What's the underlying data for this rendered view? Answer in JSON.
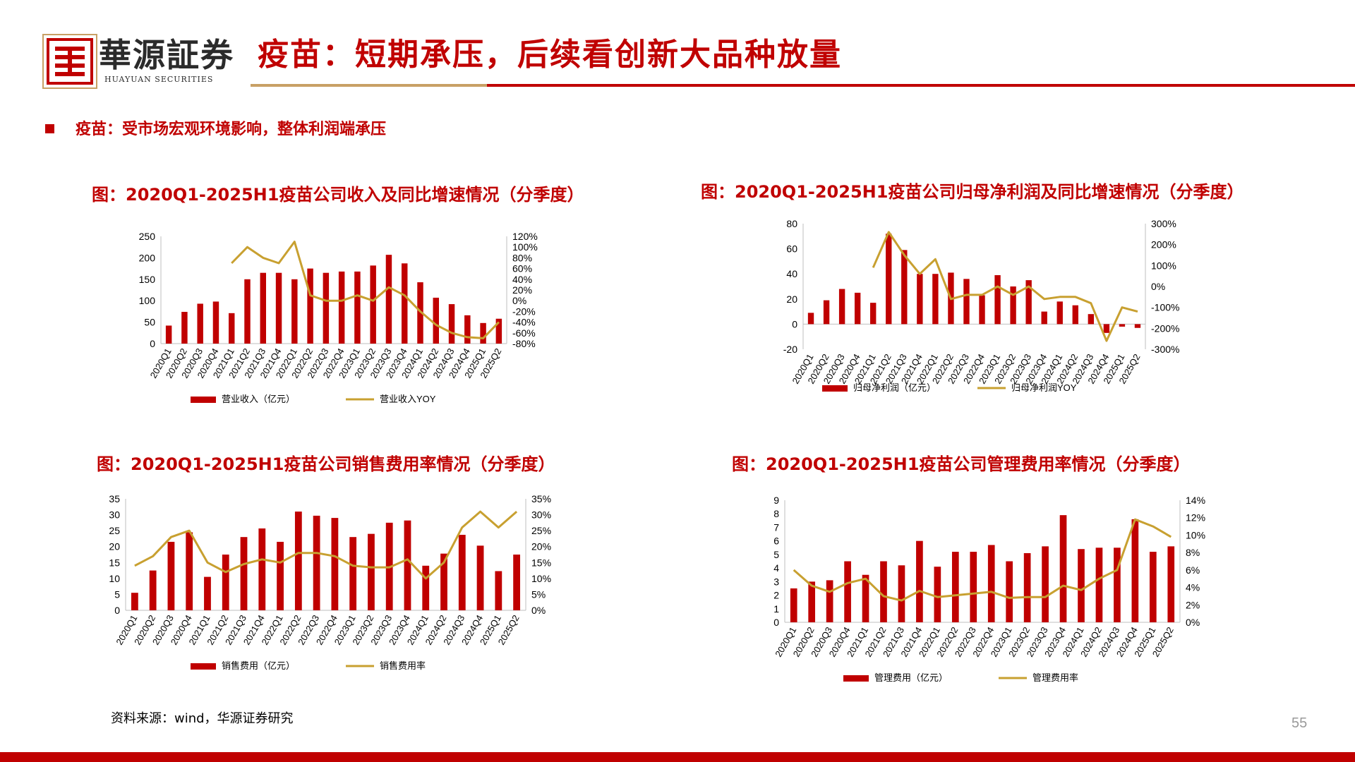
{
  "header": {
    "brand_cn": "華源証券",
    "brand_en": "HUAYUAN SECURITIES",
    "title": "疫苗：短期承压，后续看创新大品种放量",
    "accent_color": "#c00000",
    "gold_color": "#c8a065"
  },
  "subheading": "疫苗：受市场宏观环境影响，整体利润端承压",
  "chart_titles": {
    "revenue": "图：2020Q1-2025H1疫苗公司收入及同比增速情况（分季度）",
    "profit": "图：2020Q1-2025H1疫苗公司归母净利润及同比增速情况（分季度）",
    "selling": "图：2020Q1-2025H1疫苗公司销售费用率情况（分季度）",
    "admin": "图：2020Q1-2025H1疫苗公司管理费用率情况（分季度）"
  },
  "chart_data": [
    {
      "id": "revenue",
      "type": "bar",
      "categories": [
        "2020Q1",
        "2020Q2",
        "2020Q3",
        "2020Q4",
        "2021Q1",
        "2021Q2",
        "2021Q3",
        "2021Q4",
        "2022Q1",
        "2022Q2",
        "2022Q3",
        "2022Q4",
        "2023Q1",
        "2023Q2",
        "2023Q3",
        "2023Q4",
        "2024Q1",
        "2024Q2",
        "2024Q3",
        "2024Q4",
        "2025Q1",
        "2025Q2"
      ],
      "series": [
        {
          "name": "营业收入（亿元）",
          "type": "bar",
          "axis": "left",
          "color": "#c00000",
          "values": [
            42,
            74,
            93,
            98,
            71,
            150,
            165,
            165,
            150,
            175,
            165,
            168,
            168,
            182,
            207,
            187,
            143,
            107,
            92,
            66,
            48,
            58
          ]
        },
        {
          "name": "营业收入YOY",
          "type": "line",
          "axis": "right",
          "color": "#c8a030",
          "values": [
            null,
            null,
            null,
            null,
            70,
            100,
            80,
            70,
            110,
            10,
            0,
            0,
            10,
            0,
            25,
            10,
            -20,
            -45,
            -60,
            -68,
            -70,
            -40
          ]
        }
      ],
      "left_axis": {
        "ticks": [
          0,
          50,
          100,
          150,
          200,
          250
        ],
        "ylim": [
          0,
          250
        ]
      },
      "right_axis": {
        "ticks": [
          "-80%",
          "-60%",
          "-40%",
          "-20%",
          "0%",
          "20%",
          "40%",
          "60%",
          "80%",
          "100%",
          "120%"
        ],
        "ylim": [
          -80,
          120
        ]
      }
    },
    {
      "id": "profit",
      "type": "bar",
      "categories": [
        "2020Q1",
        "2020Q2",
        "2020Q3",
        "2020Q4",
        "2021Q1",
        "2021Q2",
        "2021Q3",
        "2021Q4",
        "2022Q1",
        "2022Q2",
        "2022Q3",
        "2022Q4",
        "2023Q1",
        "2023Q2",
        "2023Q3",
        "2023Q4",
        "2024Q1",
        "2024Q2",
        "2024Q3",
        "2024Q4",
        "2025Q1",
        "2025Q2"
      ],
      "series": [
        {
          "name": "归母净利润（亿元）",
          "type": "bar",
          "axis": "left",
          "color": "#c00000",
          "values": [
            9,
            19,
            28,
            25,
            17,
            72,
            59,
            40,
            40,
            41,
            36,
            23,
            39,
            30,
            35,
            10,
            18,
            15,
            8,
            -7,
            -2,
            -3
          ]
        },
        {
          "name": "归母净利润YOY",
          "type": "line",
          "axis": "right",
          "color": "#c8a030",
          "values": [
            null,
            null,
            null,
            null,
            90,
            260,
            150,
            60,
            130,
            -60,
            -40,
            -40,
            0,
            -40,
            0,
            -60,
            -50,
            -50,
            -80,
            -260,
            -100,
            -120
          ]
        }
      ],
      "left_axis": {
        "ticks": [
          -20,
          0,
          20,
          40,
          60,
          80
        ],
        "ylim": [
          -20,
          80
        ]
      },
      "right_axis": {
        "ticks": [
          "-300%",
          "-200%",
          "-100%",
          "0%",
          "100%",
          "200%",
          "300%"
        ],
        "ylim": [
          -300,
          300
        ]
      }
    },
    {
      "id": "selling",
      "type": "bar",
      "categories": [
        "2020Q1",
        "2020Q2",
        "2020Q3",
        "2020Q4",
        "2021Q1",
        "2021Q2",
        "2021Q3",
        "2021Q4",
        "2022Q1",
        "2022Q2",
        "2022Q3",
        "2022Q4",
        "2023Q1",
        "2023Q2",
        "2023Q3",
        "2023Q4",
        "2024Q1",
        "2024Q2",
        "2024Q3",
        "2024Q4",
        "2025Q1",
        "2025Q2"
      ],
      "series": [
        {
          "name": "销售费用（亿元）",
          "type": "bar",
          "axis": "left",
          "color": "#c00000",
          "values": [
            5.5,
            12.5,
            21.5,
            24.5,
            10.5,
            17.5,
            23,
            25.7,
            21.5,
            31,
            29.7,
            29,
            23,
            24,
            27.5,
            28.2,
            14,
            17.8,
            23.7,
            20.3,
            12.3,
            17.5
          ]
        },
        {
          "name": "销售费用率",
          "type": "line",
          "axis": "right",
          "color": "#c8a030",
          "values": [
            14,
            17,
            23,
            25,
            15,
            12,
            14.5,
            16,
            15,
            18,
            18,
            17,
            14,
            13.5,
            13.5,
            16,
            10,
            15,
            26,
            31,
            26,
            31
          ]
        }
      ],
      "left_axis": {
        "ticks": [
          0,
          5,
          10,
          15,
          20,
          25,
          30,
          35
        ],
        "ylim": [
          0,
          35
        ]
      },
      "right_axis": {
        "ticks": [
          "0%",
          "5%",
          "10%",
          "15%",
          "20%",
          "25%",
          "30%",
          "35%"
        ],
        "ylim": [
          0,
          35
        ]
      }
    },
    {
      "id": "admin",
      "type": "bar",
      "categories": [
        "2020Q1",
        "2020Q2",
        "2020Q3",
        "2020Q4",
        "2021Q1",
        "2021Q2",
        "2021Q3",
        "2021Q4",
        "2022Q1",
        "2022Q2",
        "2022Q3",
        "2022Q4",
        "2023Q1",
        "2023Q2",
        "2023Q3",
        "2023Q4",
        "2024Q1",
        "2024Q2",
        "2024Q3",
        "2024Q4",
        "2025Q1",
        "2025Q2"
      ],
      "series": [
        {
          "name": "管理费用（亿元）",
          "type": "bar",
          "axis": "left",
          "color": "#c00000",
          "values": [
            2.5,
            3,
            3.1,
            4.5,
            3.5,
            4.5,
            4.2,
            6,
            4.1,
            5.2,
            5.2,
            5.7,
            4.5,
            5.1,
            5.6,
            7.9,
            5.4,
            5.5,
            5.5,
            7.6,
            5.2,
            5.6
          ]
        },
        {
          "name": "管理费用率",
          "type": "line",
          "axis": "right",
          "color": "#c8a030",
          "values": [
            6,
            4.2,
            3.5,
            4.5,
            5,
            3,
            2.5,
            3.6,
            2.9,
            3.1,
            3.3,
            3.5,
            2.8,
            2.9,
            2.9,
            4.2,
            3.7,
            5,
            6,
            11.8,
            11,
            9.8
          ]
        }
      ],
      "left_axis": {
        "ticks": [
          0,
          1,
          2,
          3,
          4,
          5,
          6,
          7,
          8,
          9
        ],
        "ylim": [
          0,
          9
        ]
      },
      "right_axis": {
        "ticks": [
          "0%",
          "2%",
          "4%",
          "6%",
          "8%",
          "10%",
          "12%",
          "14%"
        ],
        "ylim": [
          0,
          14
        ]
      }
    }
  ],
  "footer": {
    "source": "资料来源：wind，华源证券研究",
    "page_number": "55"
  }
}
